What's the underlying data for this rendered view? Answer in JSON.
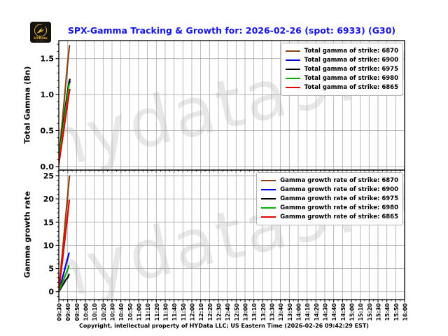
{
  "header": {
    "title": "SPX-Gamma Tracking & Growth for: 2026-02-26 (spot: 6933) (G30)",
    "title_color": "#1414e8"
  },
  "logo": {
    "text": "HYData",
    "bg_color": "#16120c",
    "gold_color": "#d4af37"
  },
  "watermark": {
    "text": "hydata9.co",
    "color": "#e7e7e7"
  },
  "x_axis": {
    "tick_labels": [
      "09:30",
      "09:40",
      "09:50",
      "10:00",
      "10:10",
      "10:20",
      "10:30",
      "10:40",
      "10:50",
      "11:00",
      "11:10",
      "11:20",
      "11:30",
      "11:40",
      "11:50",
      "12:00",
      "12:10",
      "12:20",
      "12:30",
      "12:40",
      "12:50",
      "13:00",
      "13:10",
      "13:20",
      "13:30",
      "13:40",
      "13:50",
      "14:00",
      "14:10",
      "14:20",
      "14:30",
      "14:40",
      "14:50",
      "15:00",
      "15:10",
      "15:20",
      "15:30",
      "15:40",
      "15:50",
      "16:00"
    ],
    "minutes_per_tick": 10,
    "range_minutes": [
      0,
      390
    ],
    "start_time": "09:30",
    "end_time": "16:00"
  },
  "chart_data": [
    {
      "type": "line",
      "ylabel": "Total Gamma (Bn)",
      "ylim": [
        -0.05,
        1.75
      ],
      "ytick_values": [
        0.0,
        0.5,
        1.0,
        1.5
      ],
      "ytick_labels": [
        "0.0",
        "0.5",
        "1.0",
        "1.5"
      ],
      "grid": true,
      "legend_position": "upper right",
      "x_unit": "minutes since 09:30",
      "series": [
        {
          "name": "Total gamma of strike: 6870",
          "color": "#8B4513",
          "points": [
            [
              0,
              0.1
            ],
            [
              2,
              0.36
            ],
            [
              4,
              0.63
            ],
            [
              6,
              0.9
            ],
            [
              8,
              1.17
            ],
            [
              10,
              1.44
            ],
            [
              12,
              1.68
            ]
          ]
        },
        {
          "name": "Total gamma of strike: 6900",
          "color": "#0000dd",
          "points": [
            [
              0,
              0.12
            ],
            [
              2,
              0.3
            ],
            [
              4,
              0.48
            ],
            [
              6,
              0.66
            ],
            [
              8,
              0.84
            ],
            [
              10,
              1.02
            ],
            [
              11.5,
              1.15
            ],
            [
              12.5,
              1.18
            ]
          ]
        },
        {
          "name": "Total gamma of strike: 6975",
          "color": "#000000",
          "points": [
            [
              0,
              0.13
            ],
            [
              2,
              0.31
            ],
            [
              4,
              0.5
            ],
            [
              6,
              0.68
            ],
            [
              8,
              0.87
            ],
            [
              10,
              1.05
            ],
            [
              11.5,
              1.17
            ],
            [
              12.5,
              1.21
            ]
          ]
        },
        {
          "name": "Total gamma of strike: 6980",
          "color": "#00b200",
          "points": [
            [
              0,
              0.11
            ],
            [
              2,
              0.29
            ],
            [
              4,
              0.46
            ],
            [
              6,
              0.63
            ],
            [
              8,
              0.81
            ],
            [
              10,
              0.98
            ],
            [
              11.3,
              1.12
            ],
            [
              12,
              1.15
            ]
          ]
        },
        {
          "name": "Total gamma of strike: 6865",
          "color": "#e80000",
          "points": [
            [
              0,
              0.03
            ],
            [
              2,
              0.2
            ],
            [
              4,
              0.37
            ],
            [
              6,
              0.54
            ],
            [
              8,
              0.71
            ],
            [
              10,
              0.88
            ],
            [
              12,
              1.05
            ],
            [
              12.5,
              1.07
            ]
          ]
        }
      ]
    },
    {
      "type": "line",
      "ylabel": "Gamma growth rate",
      "ylim": [
        -1.7,
        26.2
      ],
      "ytick_values": [
        0,
        5,
        10,
        15,
        20,
        25
      ],
      "ytick_labels": [
        "0",
        "5",
        "10",
        "15",
        "20",
        "25"
      ],
      "grid": true,
      "legend_position": "upper right",
      "x_unit": "minutes since 09:30",
      "series": [
        {
          "name": "Gamma growth rate of strike: 6870",
          "color": "#8B4513",
          "points": [
            [
              0,
              0.0
            ],
            [
              2,
              4.1
            ],
            [
              4,
              8.3
            ],
            [
              6,
              12.4
            ],
            [
              8,
              16.6
            ],
            [
              10,
              20.7
            ],
            [
              12,
              24.9
            ]
          ]
        },
        {
          "name": "Gamma growth rate of strike: 6900",
          "color": "#0000dd",
          "points": [
            [
              0,
              0.0
            ],
            [
              2,
              1.4
            ],
            [
              4,
              2.9
            ],
            [
              6,
              4.3
            ],
            [
              8,
              5.8
            ],
            [
              10,
              7.2
            ],
            [
              11.5,
              8.3
            ]
          ]
        },
        {
          "name": "Gamma growth rate of strike: 6975",
          "color": "#000000",
          "points": [
            [
              0,
              0.0
            ],
            [
              2,
              0.6
            ],
            [
              4,
              1.3
            ],
            [
              6,
              1.9
            ],
            [
              8,
              2.6
            ],
            [
              10,
              3.0
            ],
            [
              11.5,
              3.7
            ]
          ]
        },
        {
          "name": "Gamma growth rate of strike: 6980",
          "color": "#00b200",
          "points": [
            [
              0,
              0.0
            ],
            [
              2,
              0.95
            ],
            [
              4,
              1.9
            ],
            [
              6,
              2.85
            ],
            [
              8,
              3.8
            ],
            [
              10,
              4.75
            ],
            [
              11,
              5.2
            ],
            [
              11.3,
              5.6
            ]
          ]
        },
        {
          "name": "Gamma growth rate of strike: 6865",
          "color": "#e80000",
          "points": [
            [
              0,
              0.0
            ],
            [
              2,
              3.3
            ],
            [
              4,
              6.6
            ],
            [
              6,
              9.9
            ],
            [
              8,
              13.2
            ],
            [
              10,
              16.5
            ],
            [
              11.8,
              19.7
            ]
          ]
        }
      ]
    }
  ],
  "footer": {
    "text": "Copyright, intellectual property of HYData LLC; US Eastern Time (2026-02-26 09:42:29 EST)"
  }
}
